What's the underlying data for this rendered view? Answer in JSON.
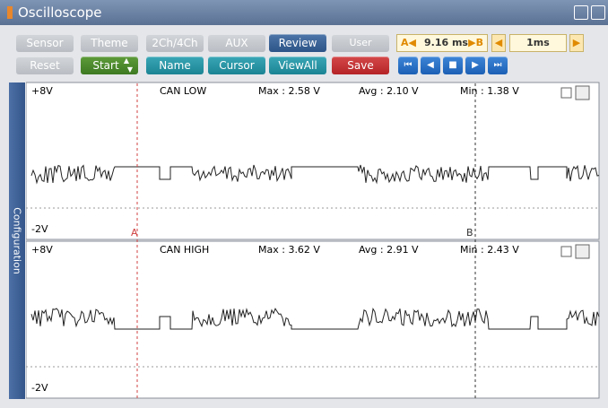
{
  "window": {
    "title": "Oscilloscope"
  },
  "toolbar": {
    "row1": [
      "Sensor",
      "Theme",
      "2Ch/4Ch",
      "AUX",
      "Review",
      "User Setting"
    ],
    "row2": [
      "Reset",
      "Start",
      "Name",
      "Cursor",
      "ViewAll",
      "Save"
    ],
    "cursor_a_label": "A◀",
    "time_cursor": "9.16 ms",
    "cursor_b_label": "▶B",
    "time_div": "1ms"
  },
  "sidebar": "Configuration",
  "channels": [
    {
      "name": "CAN LOW",
      "top": "+8V",
      "bottom": "-2V",
      "max": "Max : 2.58 V",
      "avg": "Avg : 2.10 V",
      "min": "Min : 1.38 V"
    },
    {
      "name": "CAN HIGH",
      "top": "+8V",
      "bottom": "-2V",
      "max": "Max : 3.62 V",
      "avg": "Avg : 2.91 V",
      "min": "Min : 2.43 V"
    }
  ],
  "cursors": [
    "A",
    "B"
  ]
}
